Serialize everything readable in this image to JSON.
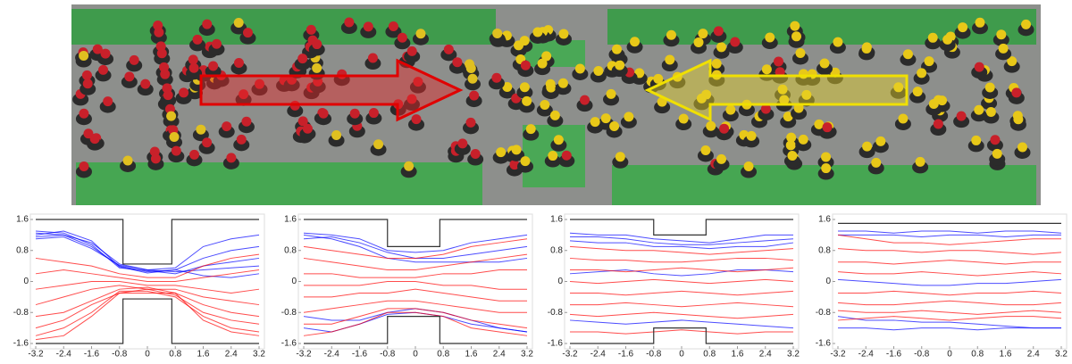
{
  "chart_data": [
    {
      "type": "line",
      "x": [
        -3.2,
        -2.4,
        -1.6,
        -0.8,
        0,
        0.8,
        1.6,
        2.4,
        3.2
      ],
      "xlim": [
        -3.2,
        3.2
      ],
      "ylim": [
        -1.6,
        1.6
      ],
      "xticks": [
        -3.2,
        -2.4,
        -1.6,
        -0.8,
        0,
        0.8,
        1.6,
        2.4,
        3.2
      ],
      "yticks": [
        -1.6,
        -0.8,
        0,
        0.8,
        1.6
      ],
      "walls": [
        {
          "x": [
            -3.2,
            -0.7,
            -0.7,
            0.7,
            0.7,
            3.2
          ],
          "y": [
            1.6,
            1.6,
            0.45,
            0.45,
            1.6,
            1.6
          ]
        },
        {
          "x": [
            -3.2,
            -0.7,
            -0.7,
            0.7,
            0.7,
            3.2
          ],
          "y": [
            -1.6,
            -1.6,
            -0.45,
            -0.45,
            -1.6,
            -1.6
          ]
        }
      ],
      "series": [
        {
          "color": "#0000ff",
          "values": [
            1.25,
            1.2,
            1.0,
            0.45,
            0.3,
            0.35,
            0.9,
            1.1,
            1.2
          ]
        },
        {
          "color": "#0000ff",
          "values": [
            1.15,
            1.2,
            0.9,
            0.4,
            0.25,
            0.3,
            0.6,
            0.8,
            0.9
          ]
        },
        {
          "color": "#0000ff",
          "values": [
            1.3,
            1.25,
            0.95,
            0.35,
            0.28,
            0.2,
            0.4,
            0.5,
            0.6
          ]
        },
        {
          "color": "#0000ff",
          "values": [
            1.1,
            1.15,
            0.85,
            0.42,
            0.3,
            0.25,
            0.3,
            0.35,
            0.4
          ]
        },
        {
          "color": "#0000ff",
          "values": [
            1.2,
            1.3,
            1.05,
            0.38,
            0.22,
            0.3,
            0.15,
            0.1,
            0.2
          ]
        },
        {
          "color": "#ff0000",
          "values": [
            0.6,
            0.5,
            0.4,
            0.2,
            0.1,
            0.1,
            0.4,
            0.6,
            0.7
          ]
        },
        {
          "color": "#ff0000",
          "values": [
            0.2,
            0.3,
            0.2,
            0.1,
            0.0,
            0.0,
            0.1,
            0.2,
            0.3
          ]
        },
        {
          "color": "#ff0000",
          "values": [
            -0.2,
            -0.1,
            0.0,
            0.0,
            -0.1,
            -0.1,
            -0.2,
            -0.3,
            -0.2
          ]
        },
        {
          "color": "#ff0000",
          "values": [
            -0.6,
            -0.4,
            -0.2,
            -0.1,
            -0.2,
            -0.2,
            -0.4,
            -0.5,
            -0.6
          ]
        },
        {
          "color": "#ff0000",
          "values": [
            -0.9,
            -0.8,
            -0.5,
            -0.2,
            -0.15,
            -0.3,
            -0.6,
            -0.8,
            -0.9
          ]
        },
        {
          "color": "#ff0000",
          "values": [
            -1.2,
            -1.0,
            -0.6,
            -0.3,
            -0.2,
            -0.35,
            -0.8,
            -1.0,
            -1.1
          ]
        },
        {
          "color": "#ff0000",
          "values": [
            -1.4,
            -1.2,
            -0.8,
            -0.25,
            -0.25,
            -0.4,
            -0.9,
            -1.2,
            -1.3
          ]
        },
        {
          "color": "#ff0000",
          "values": [
            -1.5,
            -1.4,
            -0.9,
            -0.3,
            -0.3,
            -0.3,
            -1.0,
            -1.3,
            -1.4
          ]
        }
      ]
    },
    {
      "type": "line",
      "x": [
        -3.2,
        -2.4,
        -1.6,
        -0.8,
        0,
        0.8,
        1.6,
        2.4,
        3.2
      ],
      "xlim": [
        -3.2,
        3.2
      ],
      "ylim": [
        -1.6,
        1.6
      ],
      "xticks": [
        -3.2,
        -2.4,
        -1.6,
        -0.8,
        0,
        0.8,
        1.6,
        2.4,
        3.2
      ],
      "yticks": [
        -1.6,
        -0.8,
        0,
        0.8,
        1.6
      ],
      "walls": [
        {
          "x": [
            -3.2,
            -0.8,
            -0.8,
            0.7,
            0.7,
            3.2
          ],
          "y": [
            1.6,
            1.6,
            0.9,
            0.9,
            1.6,
            1.6
          ]
        },
        {
          "x": [
            -3.2,
            -0.8,
            -0.8,
            0.7,
            0.7,
            3.2
          ],
          "y": [
            -1.6,
            -1.6,
            -0.9,
            -0.9,
            -1.6,
            -1.6
          ]
        }
      ],
      "series": [
        {
          "color": "#0000ff",
          "values": [
            1.25,
            1.2,
            1.1,
            0.8,
            0.75,
            0.8,
            1.0,
            1.1,
            1.2
          ]
        },
        {
          "color": "#0000ff",
          "values": [
            1.1,
            1.15,
            1.0,
            0.75,
            0.6,
            0.6,
            0.7,
            0.8,
            0.9
          ]
        },
        {
          "color": "#0000ff",
          "values": [
            1.2,
            1.1,
            0.9,
            0.6,
            0.5,
            0.5,
            0.5,
            0.5,
            0.6
          ]
        },
        {
          "color": "#0000ff",
          "values": [
            -0.9,
            -1.0,
            -1.0,
            -0.8,
            -0.7,
            -0.8,
            -1.0,
            -1.2,
            -1.3
          ]
        },
        {
          "color": "#0000ff",
          "values": [
            -1.2,
            -1.3,
            -1.1,
            -0.85,
            -0.8,
            -0.9,
            -1.1,
            -1.2,
            -1.3
          ]
        },
        {
          "color": "#ff0000",
          "values": [
            0.9,
            0.8,
            0.7,
            0.6,
            0.6,
            0.7,
            0.9,
            1.0,
            1.1
          ]
        },
        {
          "color": "#ff0000",
          "values": [
            0.6,
            0.5,
            0.4,
            0.3,
            0.3,
            0.4,
            0.5,
            0.6,
            0.7
          ]
        },
        {
          "color": "#ff0000",
          "values": [
            0.2,
            0.2,
            0.1,
            0.1,
            0.1,
            0.2,
            0.2,
            0.3,
            0.3
          ]
        },
        {
          "color": "#ff0000",
          "values": [
            -0.1,
            -0.1,
            -0.1,
            0,
            0,
            -0.1,
            -0.1,
            -0.2,
            -0.2
          ]
        },
        {
          "color": "#ff0000",
          "values": [
            -0.4,
            -0.4,
            -0.3,
            -0.3,
            -0.2,
            -0.3,
            -0.4,
            -0.5,
            -0.5
          ]
        },
        {
          "color": "#ff0000",
          "values": [
            -0.8,
            -0.7,
            -0.6,
            -0.5,
            -0.5,
            -0.6,
            -0.7,
            -0.8,
            -0.8
          ]
        },
        {
          "color": "#ff0000",
          "values": [
            -1.1,
            -1.1,
            -0.9,
            -0.7,
            -0.7,
            -0.8,
            -1.0,
            -1.1,
            -1.2
          ]
        },
        {
          "color": "#ff0000",
          "values": [
            -1.4,
            -1.3,
            -1.1,
            -0.8,
            -0.8,
            -0.9,
            -1.2,
            -1.3,
            -1.4
          ]
        }
      ]
    },
    {
      "type": "line",
      "x": [
        -3.2,
        -2.4,
        -1.6,
        -0.8,
        0,
        0.8,
        1.6,
        2.4,
        3.2
      ],
      "xlim": [
        -3.2,
        3.2
      ],
      "ylim": [
        -1.6,
        1.6
      ],
      "xticks": [
        -3.2,
        -2.4,
        -1.6,
        -0.8,
        0,
        0.8,
        1.6,
        2.4,
        3.2
      ],
      "yticks": [
        -1.6,
        -0.8,
        0,
        0.8,
        1.6
      ],
      "walls": [
        {
          "x": [
            -3.2,
            -0.8,
            -0.8,
            0.7,
            0.7,
            3.2
          ],
          "y": [
            1.6,
            1.6,
            1.2,
            1.2,
            1.6,
            1.6
          ]
        },
        {
          "x": [
            -3.2,
            -0.8,
            -0.8,
            0.7,
            0.7,
            3.2
          ],
          "y": [
            -1.6,
            -1.6,
            -1.2,
            -1.2,
            -1.6,
            -1.6
          ]
        }
      ],
      "series": [
        {
          "color": "#0000ff",
          "values": [
            1.25,
            1.2,
            1.2,
            1.1,
            1.05,
            1.0,
            1.1,
            1.2,
            1.2
          ]
        },
        {
          "color": "#0000ff",
          "values": [
            1.15,
            1.15,
            1.1,
            1.0,
            0.95,
            0.95,
            1.0,
            1.05,
            1.1
          ]
        },
        {
          "color": "#0000ff",
          "values": [
            1.05,
            1.0,
            1.0,
            0.9,
            0.9,
            0.85,
            0.9,
            0.9,
            1.0
          ]
        },
        {
          "color": "#0000ff",
          "values": [
            -1.0,
            -1.05,
            -1.1,
            -1.05,
            -1.0,
            -1.05,
            -1.1,
            -1.15,
            -1.2
          ]
        },
        {
          "color": "#0000ff",
          "values": [
            0.2,
            0.25,
            0.3,
            0.2,
            0.15,
            0.2,
            0.3,
            0.3,
            0.25
          ]
        },
        {
          "color": "#ff0000",
          "values": [
            0.9,
            0.85,
            0.8,
            0.8,
            0.75,
            0.7,
            0.75,
            0.8,
            0.85
          ]
        },
        {
          "color": "#ff0000",
          "values": [
            0.6,
            0.55,
            0.55,
            0.5,
            0.5,
            0.55,
            0.6,
            0.6,
            0.55
          ]
        },
        {
          "color": "#ff0000",
          "values": [
            0.3,
            0.3,
            0.25,
            0.3,
            0.35,
            0.3,
            0.25,
            0.3,
            0.35
          ]
        },
        {
          "color": "#ff0000",
          "values": [
            0.0,
            -0.05,
            0,
            0.05,
            0,
            -0.05,
            0,
            0.05,
            0
          ]
        },
        {
          "color": "#ff0000",
          "values": [
            -0.3,
            -0.3,
            -0.35,
            -0.3,
            -0.25,
            -0.3,
            -0.35,
            -0.3,
            -0.25
          ]
        },
        {
          "color": "#ff0000",
          "values": [
            -0.6,
            -0.6,
            -0.55,
            -0.6,
            -0.65,
            -0.6,
            -0.55,
            -0.6,
            -0.65
          ]
        },
        {
          "color": "#ff0000",
          "values": [
            -0.85,
            -0.9,
            -0.85,
            -0.8,
            -0.85,
            -0.9,
            -0.95,
            -0.9,
            -0.85
          ]
        },
        {
          "color": "#ff0000",
          "values": [
            -1.3,
            -1.3,
            -1.35,
            -1.3,
            -1.25,
            -1.3,
            -1.35,
            -1.3,
            -1.3
          ]
        }
      ]
    },
    {
      "type": "line",
      "x": [
        -3.2,
        -2.4,
        -1.6,
        -0.8,
        0,
        0.8,
        1.6,
        2.4,
        3.2
      ],
      "xlim": [
        -3.2,
        3.2
      ],
      "ylim": [
        -1.6,
        1.6
      ],
      "xticks": [
        -3.2,
        -2.4,
        -1.6,
        -0.8,
        0,
        0.8,
        1.6,
        2.4,
        3.2
      ],
      "yticks": [
        -1.6,
        -0.8,
        0,
        0.8,
        1.6
      ],
      "walls": [
        {
          "x": [
            -3.2,
            3.2
          ],
          "y": [
            1.5,
            1.5
          ]
        }
      ],
      "series": [
        {
          "color": "#0000ff",
          "values": [
            1.3,
            1.3,
            1.25,
            1.3,
            1.3,
            1.25,
            1.3,
            1.3,
            1.25
          ]
        },
        {
          "color": "#0000ff",
          "values": [
            1.2,
            1.2,
            1.2,
            1.15,
            1.2,
            1.2,
            1.15,
            1.2,
            1.2
          ]
        },
        {
          "color": "#0000ff",
          "values": [
            -0.9,
            -1.0,
            -1.0,
            -1.05,
            -1.05,
            -1.1,
            -1.15,
            -1.2,
            -1.2
          ]
        },
        {
          "color": "#0000ff",
          "values": [
            -1.2,
            -1.2,
            -1.25,
            -1.2,
            -1.2,
            -1.25,
            -1.2,
            -1.2,
            -1.2
          ]
        },
        {
          "color": "#0000ff",
          "values": [
            0.05,
            0.0,
            -0.05,
            -0.1,
            -0.1,
            -0.05,
            -0.05,
            0,
            0.05
          ]
        },
        {
          "color": "#ff0000",
          "values": [
            1.2,
            1.1,
            1.0,
            1.0,
            0.95,
            1.0,
            1.05,
            1.1,
            1.1
          ]
        },
        {
          "color": "#ff0000",
          "values": [
            0.85,
            0.8,
            0.8,
            0.75,
            0.8,
            0.8,
            0.75,
            0.7,
            0.75
          ]
        },
        {
          "color": "#ff0000",
          "values": [
            0.5,
            0.5,
            0.45,
            0.5,
            0.55,
            0.5,
            0.45,
            0.5,
            0.5
          ]
        },
        {
          "color": "#ff0000",
          "values": [
            0.25,
            0.2,
            0.2,
            0.25,
            0.2,
            0.15,
            0.2,
            0.25,
            0.2
          ]
        },
        {
          "color": "#ff0000",
          "values": [
            -0.3,
            -0.3,
            -0.25,
            -0.3,
            -0.35,
            -0.3,
            -0.3,
            -0.25,
            -0.3
          ]
        },
        {
          "color": "#ff0000",
          "values": [
            -0.55,
            -0.6,
            -0.6,
            -0.55,
            -0.5,
            -0.55,
            -0.6,
            -0.6,
            -0.55
          ]
        },
        {
          "color": "#ff0000",
          "values": [
            -0.75,
            -0.8,
            -0.8,
            -0.75,
            -0.8,
            -0.85,
            -0.8,
            -0.75,
            -0.8
          ]
        },
        {
          "color": "#ff0000",
          "values": [
            -1.0,
            -0.95,
            -0.9,
            -0.95,
            -1.0,
            -0.95,
            -0.9,
            -0.9,
            -0.95
          ]
        }
      ]
    }
  ]
}
